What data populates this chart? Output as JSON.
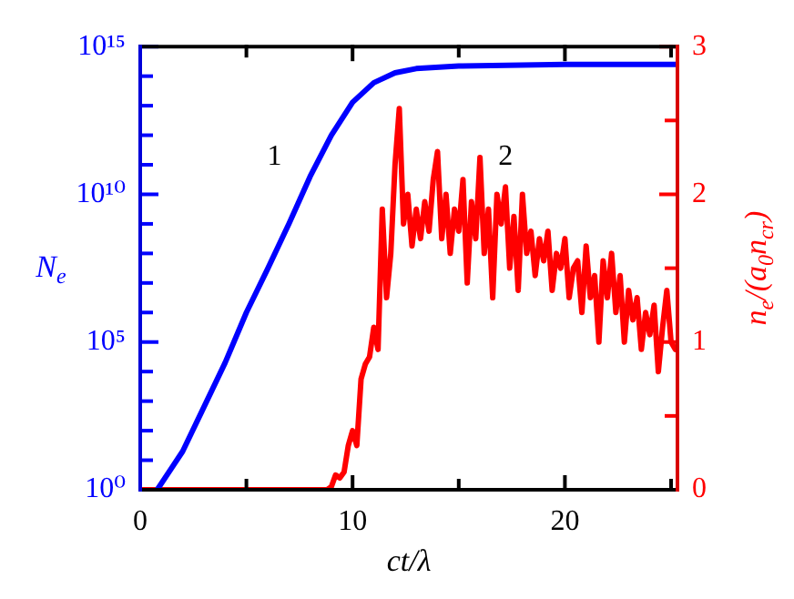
{
  "chart_data": {
    "type": "line",
    "xlabel": "ct/λ",
    "ylabel": "N$_{e}$",
    "y2label": "n$_{e}$/(a$_{0}$n$_{cr}$)",
    "log": true,
    "grid": false,
    "legend": false,
    "marker": "none",
    "line_style": "solid",
    "xlim": [
      0,
      25.3
    ],
    "xticks": [
      0,
      {
        "value": 5,
        "label": null
      },
      10,
      {
        "value": 15,
        "label": null
      },
      20,
      {
        "value": 25,
        "label": null
      }
    ],
    "ylim": [
      1,
      1000000000000000.0
    ],
    "yticks": [
      {
        "value": 1,
        "label": "10⁰"
      },
      {
        "value": 10,
        "label": null
      },
      {
        "value": 100,
        "label": null
      },
      {
        "value": 1000,
        "label": null
      },
      {
        "value": 10000,
        "label": null
      },
      {
        "value": 100000,
        "label": "10⁵"
      },
      {
        "value": 1000000.0,
        "label": null
      },
      {
        "value": 10000000.0,
        "label": null
      },
      {
        "value": 100000000.0,
        "label": null
      },
      {
        "value": 1000000000.0,
        "label": null
      },
      {
        "value": 10000000000.0,
        "label": "10¹⁰"
      },
      {
        "value": 100000000000.0,
        "label": null
      },
      {
        "value": 1000000000000.0,
        "label": null
      },
      {
        "value": 10000000000000.0,
        "label": null
      },
      {
        "value": 100000000000000.0,
        "label": null
      },
      {
        "value": 1000000000000000.0,
        "label": "10¹⁵"
      }
    ],
    "y2lim": [
      0,
      3
    ],
    "y2ticks": [
      0,
      {
        "value": 0.5,
        "label": null
      },
      1,
      {
        "value": 1.5,
        "label": null
      },
      2,
      {
        "value": 2.5,
        "label": null
      },
      3
    ],
    "annotations": [
      "1",
      "2"
    ],
    "series": [
      {
        "color": "#0000ff",
        "x": [
          0.8,
          2,
          3,
          4,
          5,
          6,
          7,
          8,
          9,
          10,
          11,
          12,
          13,
          15,
          20,
          25.3
        ],
        "values": [
          1,
          20,
          630,
          20000,
          1000000,
          30000000,
          1000000000,
          40000000000,
          1000000000000,
          13000000000000,
          60000000000000,
          130000000000000,
          180000000000000,
          220000000000000,
          250000000000000,
          250000000000000
        ]
      },
      {
        "color": "#ff0000",
        "axis": "y2",
        "x": [
          0,
          8.8,
          9.0,
          9.2,
          9.4,
          9.6,
          9.8,
          10.0,
          10.2,
          10.4,
          10.6,
          10.8,
          11.0,
          11.2,
          11.4,
          11.6,
          11.8,
          12.0,
          12.2,
          12.4,
          12.6,
          12.8,
          13.0,
          13.2,
          13.4,
          13.6,
          13.8,
          14.0,
          14.2,
          14.4,
          14.6,
          14.8,
          15.0,
          15.2,
          15.4,
          15.6,
          15.8,
          16.0,
          16.2,
          16.4,
          16.6,
          16.8,
          17.0,
          17.2,
          17.4,
          17.6,
          17.8,
          18.0,
          18.2,
          18.4,
          18.6,
          18.8,
          19.0,
          19.2,
          19.4,
          19.6,
          19.8,
          20.0,
          20.2,
          20.4,
          20.6,
          20.8,
          21.0,
          21.2,
          21.4,
          21.6,
          21.8,
          22.0,
          22.2,
          22.4,
          22.6,
          22.8,
          23.0,
          23.2,
          23.4,
          23.6,
          23.8,
          24.0,
          24.2,
          24.4,
          24.6,
          24.8,
          25.0,
          25.2
        ],
        "values": [
          0,
          0,
          0.02,
          0.1,
          0.08,
          0.12,
          0.3,
          0.4,
          0.3,
          0.75,
          0.85,
          0.9,
          1.1,
          0.95,
          1.9,
          1.3,
          1.6,
          2.2,
          2.58,
          1.8,
          2.0,
          1.65,
          1.9,
          1.7,
          1.95,
          1.75,
          2.1,
          2.29,
          1.7,
          2.0,
          1.6,
          1.9,
          1.75,
          2.1,
          1.4,
          1.95,
          1.7,
          2.25,
          1.6,
          1.9,
          1.3,
          2.0,
          1.8,
          2.05,
          1.5,
          1.85,
          1.35,
          2.0,
          1.6,
          1.75,
          1.45,
          1.7,
          1.55,
          1.75,
          1.35,
          1.6,
          1.5,
          1.7,
          1.3,
          1.5,
          1.55,
          1.2,
          1.65,
          1.3,
          1.45,
          1.0,
          1.55,
          1.3,
          1.6,
          1.2,
          1.45,
          1.0,
          1.35,
          1.15,
          1.3,
          0.95,
          1.2,
          1.05,
          1.25,
          0.8,
          1.1,
          1.35,
          1.0,
          0.95
        ]
      }
    ]
  }
}
